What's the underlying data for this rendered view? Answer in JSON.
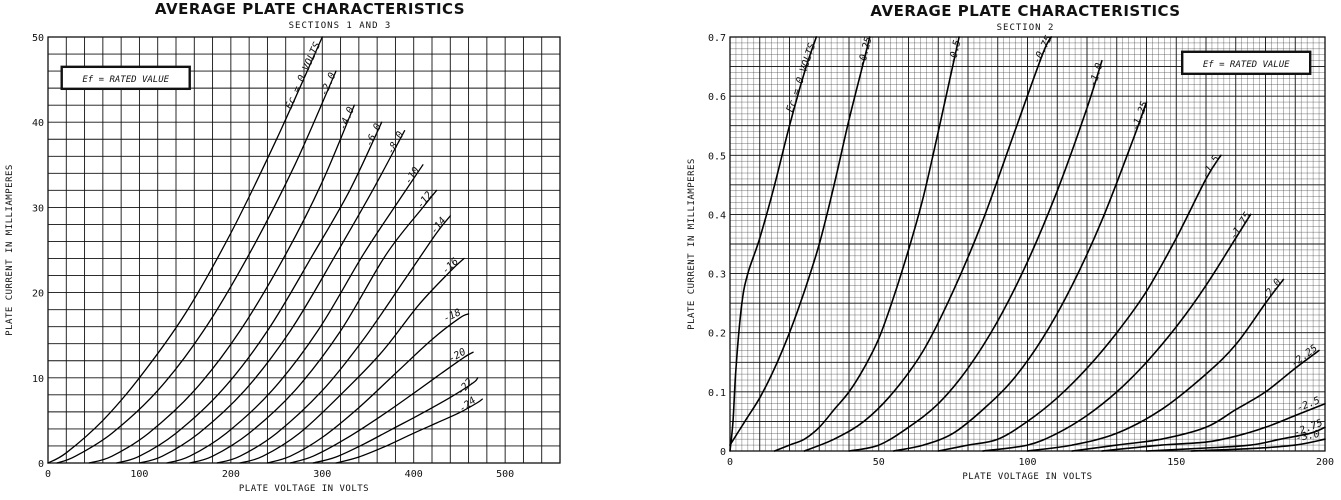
{
  "chart_data": [
    {
      "type": "line",
      "title": "AVERAGE PLATE CHARACTERISTICS",
      "subtitle": "SECTIONS 1 AND 3",
      "xlabel": "PLATE VOLTAGE IN VOLTS",
      "ylabel": "PLATE CURRENT IN MILLIAMPERES",
      "xlim": [
        0,
        560
      ],
      "ylim": [
        0,
        50
      ],
      "xticks": [
        0,
        100,
        200,
        300,
        400,
        500
      ],
      "yticks": [
        0,
        10,
        20,
        30,
        40,
        50
      ],
      "grid": true,
      "annotation": "Ef = RATED VALUE",
      "series": [
        {
          "name": "Ec = 0 VOLTS",
          "x": [
            0,
            20,
            60,
            100,
            150,
            200,
            250,
            300
          ],
          "y": [
            0,
            1.2,
            5,
            10,
            17.5,
            27,
            38,
            50
          ]
        },
        {
          "name": "-2.0",
          "x": [
            10,
            30,
            70,
            120,
            170,
            220,
            270,
            315
          ],
          "y": [
            0,
            0.8,
            3.5,
            8.5,
            15.5,
            24.5,
            35,
            46
          ]
        },
        {
          "name": "-4.0",
          "x": [
            45,
            70,
            110,
            160,
            210,
            260,
            300,
            335
          ],
          "y": [
            0,
            0.8,
            3.5,
            8.5,
            15.5,
            24.5,
            33,
            42
          ]
        },
        {
          "name": "-6.0",
          "x": [
            75,
            100,
            140,
            190,
            240,
            290,
            330,
            365
          ],
          "y": [
            0,
            0.8,
            3.5,
            8.5,
            15.5,
            24.5,
            32,
            40
          ]
        },
        {
          "name": "-8.0",
          "x": [
            100,
            125,
            165,
            215,
            265,
            315,
            355,
            390
          ],
          "y": [
            0,
            0.8,
            3.5,
            8.5,
            15.5,
            24.5,
            32,
            39
          ]
        },
        {
          "name": "-10",
          "x": [
            130,
            155,
            195,
            245,
            295,
            345,
            385,
            410
          ],
          "y": [
            0,
            0.8,
            3.5,
            8.5,
            15.5,
            24.5,
            31,
            35
          ]
        },
        {
          "name": "-12",
          "x": [
            155,
            180,
            220,
            270,
            320,
            370,
            410,
            425
          ],
          "y": [
            0,
            0.8,
            3.5,
            8.5,
            15.5,
            24.5,
            30,
            32
          ]
        },
        {
          "name": "-14",
          "x": [
            185,
            210,
            250,
            300,
            345,
            390,
            425,
            440
          ],
          "y": [
            0,
            0.8,
            3.5,
            8.5,
            14.5,
            21.5,
            27,
            29
          ]
        },
        {
          "name": "-16",
          "x": [
            210,
            235,
            275,
            320,
            365,
            405,
            440,
            455
          ],
          "y": [
            0,
            0.8,
            3.5,
            8,
            13,
            18.5,
            22.5,
            24
          ]
        },
        {
          "name": "-18",
          "x": [
            240,
            265,
            300,
            340,
            380,
            420,
            450,
            460
          ],
          "y": [
            0,
            0.8,
            3,
            6.5,
            10.5,
            14.5,
            17,
            17.5
          ]
        },
        {
          "name": "-20",
          "x": [
            265,
            290,
            325,
            360,
            395,
            430,
            455,
            465
          ],
          "y": [
            0,
            0.8,
            2.8,
            5.2,
            7.8,
            10.5,
            12.4,
            13
          ]
        },
        {
          "name": "-22",
          "x": [
            290,
            315,
            345,
            375,
            405,
            440,
            465,
            470
          ],
          "y": [
            0,
            0.7,
            2.2,
            3.9,
            5.6,
            7.7,
            9.4,
            10
          ]
        },
        {
          "name": "-24",
          "x": [
            315,
            340,
            370,
            400,
            425,
            450,
            470,
            475
          ],
          "y": [
            0,
            0.7,
            2,
            3.5,
            4.7,
            5.9,
            7.1,
            7.5
          ]
        }
      ]
    },
    {
      "type": "line",
      "title": "AVERAGE PLATE CHARACTERISTICS",
      "subtitle": "SECTION 2",
      "xlabel": "PLATE VOLTAGE IN VOLTS",
      "ylabel": "PLATE CURRENT IN MILLIAMPERES",
      "xlim": [
        0,
        200
      ],
      "ylim": [
        0,
        0.7
      ],
      "xticks": [
        0,
        50,
        100,
        150,
        200
      ],
      "yticks": [
        0,
        0.1,
        0.2,
        0.3,
        0.4,
        0.5,
        0.6,
        0.7
      ],
      "ytick_labels": [
        "0",
        "0.1",
        "0.2",
        "0.3",
        "0.4",
        "0.5",
        "0.6",
        "0.7"
      ],
      "grid": true,
      "annotation": "Ef = RATED VALUE",
      "series": [
        {
          "name": "Ec = 0 VOLTS",
          "x": [
            0,
            1,
            2,
            4,
            6,
            10,
            15,
            20,
            25,
            29
          ],
          "y": [
            0,
            0.05,
            0.14,
            0.25,
            0.3,
            0.36,
            0.45,
            0.55,
            0.64,
            0.7
          ]
        },
        {
          "name": "-0.25",
          "x": [
            0,
            5,
            10,
            15,
            20,
            25,
            30,
            35,
            40,
            45,
            47
          ],
          "y": [
            0.01,
            0.05,
            0.09,
            0.14,
            0.2,
            0.27,
            0.35,
            0.45,
            0.56,
            0.66,
            0.7
          ]
        },
        {
          "name": "-0.5",
          "x": [
            15,
            20,
            25,
            30,
            35,
            40,
            45,
            50,
            55,
            60,
            65,
            70,
            77
          ],
          "y": [
            0,
            0.01,
            0.02,
            0.04,
            0.07,
            0.1,
            0.14,
            0.19,
            0.26,
            0.34,
            0.43,
            0.54,
            0.7
          ]
        },
        {
          "name": "-0.75",
          "x": [
            25,
            35,
            45,
            55,
            65,
            75,
            85,
            95,
            105,
            108
          ],
          "y": [
            0,
            0.02,
            0.05,
            0.1,
            0.17,
            0.27,
            0.39,
            0.53,
            0.67,
            0.7
          ]
        },
        {
          "name": "-1.0",
          "x": [
            40,
            50,
            60,
            70,
            80,
            90,
            100,
            110,
            120,
            125
          ],
          "y": [
            0,
            0.01,
            0.04,
            0.08,
            0.14,
            0.22,
            0.32,
            0.44,
            0.58,
            0.66
          ]
        },
        {
          "name": "-1.25",
          "x": [
            55,
            65,
            75,
            85,
            95,
            105,
            115,
            125,
            135,
            140
          ],
          "y": [
            0,
            0.01,
            0.03,
            0.07,
            0.12,
            0.19,
            0.28,
            0.39,
            0.52,
            0.59
          ]
        },
        {
          "name": "-1.5",
          "x": [
            70,
            80,
            90,
            100,
            110,
            120,
            130,
            140,
            150,
            160,
            165
          ],
          "y": [
            0,
            0.01,
            0.02,
            0.05,
            0.09,
            0.14,
            0.2,
            0.27,
            0.36,
            0.46,
            0.5
          ]
        },
        {
          "name": "-1.75",
          "x": [
            85,
            100,
            110,
            120,
            130,
            140,
            150,
            160,
            170,
            175
          ],
          "y": [
            0,
            0.01,
            0.03,
            0.06,
            0.1,
            0.15,
            0.21,
            0.28,
            0.36,
            0.4
          ]
        },
        {
          "name": "-2.0",
          "x": [
            100,
            115,
            130,
            145,
            160,
            170,
            180,
            186
          ],
          "y": [
            0,
            0.01,
            0.03,
            0.07,
            0.13,
            0.18,
            0.25,
            0.29
          ]
        },
        {
          "name": "-2.25",
          "x": [
            115,
            130,
            145,
            160,
            170,
            180,
            190,
            198
          ],
          "y": [
            0,
            0.01,
            0.02,
            0.04,
            0.07,
            0.1,
            0.14,
            0.17
          ]
        },
        {
          "name": "-2.5",
          "x": [
            125,
            145,
            160,
            170,
            180,
            190,
            200
          ],
          "y": [
            0,
            0.01,
            0.015,
            0.025,
            0.04,
            0.06,
            0.08
          ]
        },
        {
          "name": "-2.75",
          "x": [
            140,
            160,
            175,
            185,
            195,
            200
          ],
          "y": [
            0,
            0.005,
            0.01,
            0.02,
            0.03,
            0.04
          ]
        },
        {
          "name": "-3.0",
          "x": [
            155,
            175,
            190,
            200
          ],
          "y": [
            0,
            0.004,
            0.01,
            0.02
          ]
        }
      ]
    }
  ]
}
